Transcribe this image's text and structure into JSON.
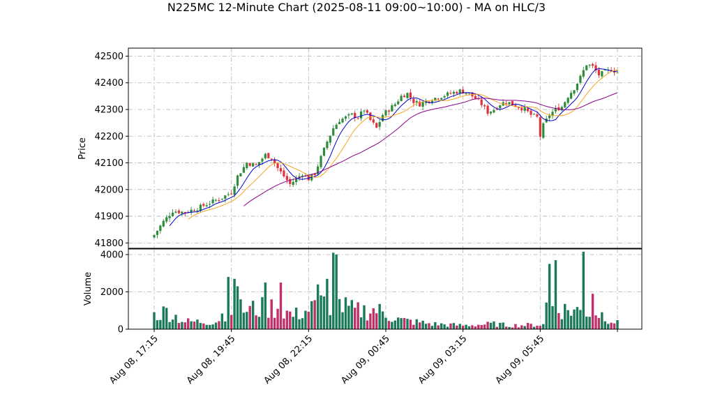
{
  "chart_data": {
    "type": "candlestick",
    "title": "N225MC 12-Minute Chart (2025-08-11 09:00~10:00) - MA on HLC/3",
    "price_panel": {
      "ylabel": "Price",
      "ylim": [
        41780,
        42530
      ],
      "yticks": [
        41800,
        41900,
        42000,
        42100,
        42200,
        42300,
        42400,
        42500
      ],
      "grid": true
    },
    "volume_panel": {
      "ylabel": "Volume",
      "ylim": [
        0,
        4300
      ],
      "yticks": [
        0,
        2000,
        4000
      ],
      "grid": true
    },
    "x_tick_labels": [
      "Aug 08, 17:15",
      "Aug 08, 19:45",
      "Aug 08, 22:15",
      "Aug 09, 00:45",
      "Aug 09, 03:15",
      "Aug 09, 05:45"
    ],
    "x_tick_bar_index": [
      0,
      25,
      50,
      75,
      100,
      125
    ],
    "bar_count": 151,
    "up_color": "#2e8b3a",
    "down_color": "#e0323c",
    "close_anchors": [
      [
        0,
        41830
      ],
      [
        3,
        41880
      ],
      [
        6,
        41920
      ],
      [
        10,
        41915
      ],
      [
        14,
        41930
      ],
      [
        18,
        41950
      ],
      [
        22,
        41970
      ],
      [
        25,
        41990
      ],
      [
        27,
        42050
      ],
      [
        30,
        42100
      ],
      [
        33,
        42090
      ],
      [
        36,
        42130
      ],
      [
        38,
        42120
      ],
      [
        40,
        42080
      ],
      [
        42,
        42050
      ],
      [
        44,
        42020
      ],
      [
        46,
        42040
      ],
      [
        48,
        42060
      ],
      [
        50,
        42040
      ],
      [
        52,
        42060
      ],
      [
        54,
        42120
      ],
      [
        56,
        42180
      ],
      [
        58,
        42230
      ],
      [
        60,
        42260
      ],
      [
        62,
        42270
      ],
      [
        64,
        42280
      ],
      [
        66,
        42270
      ],
      [
        68,
        42300
      ],
      [
        70,
        42260
      ],
      [
        72,
        42230
      ],
      [
        74,
        42280
      ],
      [
        76,
        42300
      ],
      [
        78,
        42320
      ],
      [
        80,
        42350
      ],
      [
        82,
        42360
      ],
      [
        84,
        42330
      ],
      [
        86,
        42320
      ],
      [
        88,
        42330
      ],
      [
        90,
        42340
      ],
      [
        93,
        42350
      ],
      [
        96,
        42360
      ],
      [
        99,
        42370
      ],
      [
        102,
        42360
      ],
      [
        104,
        42340
      ],
      [
        106,
        42320
      ],
      [
        108,
        42290
      ],
      [
        110,
        42300
      ],
      [
        112,
        42320
      ],
      [
        114,
        42330
      ],
      [
        116,
        42320
      ],
      [
        118,
        42310
      ],
      [
        120,
        42300
      ],
      [
        122,
        42280
      ],
      [
        124,
        42270
      ],
      [
        125,
        42200
      ],
      [
        126,
        42240
      ],
      [
        128,
        42280
      ],
      [
        130,
        42300
      ],
      [
        132,
        42310
      ],
      [
        134,
        42350
      ],
      [
        136,
        42380
      ],
      [
        138,
        42420
      ],
      [
        140,
        42470
      ],
      [
        142,
        42460
      ],
      [
        144,
        42430
      ],
      [
        146,
        42440
      ],
      [
        148,
        42450
      ],
      [
        150,
        42440
      ]
    ],
    "volume_spikes": [
      [
        24,
        2800
      ],
      [
        26,
        2700
      ],
      [
        27,
        2300
      ],
      [
        36,
        2500
      ],
      [
        41,
        2500
      ],
      [
        53,
        2400
      ],
      [
        56,
        2700
      ],
      [
        58,
        4100
      ],
      [
        59,
        4000
      ],
      [
        128,
        3500
      ],
      [
        130,
        3700
      ],
      [
        139,
        4150
      ],
      [
        142,
        1900
      ]
    ],
    "volume_levels": [
      [
        0,
        900
      ],
      [
        4,
        1200
      ],
      [
        10,
        500
      ],
      [
        20,
        500
      ],
      [
        24,
        1400
      ],
      [
        30,
        1300
      ],
      [
        40,
        1500
      ],
      [
        45,
        900
      ],
      [
        50,
        1300
      ],
      [
        55,
        1800
      ],
      [
        60,
        1600
      ],
      [
        65,
        1200
      ],
      [
        72,
        1300
      ],
      [
        76,
        900
      ],
      [
        80,
        600
      ],
      [
        90,
        350
      ],
      [
        100,
        250
      ],
      [
        110,
        350
      ],
      [
        115,
        250
      ],
      [
        126,
        300
      ],
      [
        127,
        1700
      ],
      [
        133,
        1300
      ],
      [
        140,
        1200
      ],
      [
        145,
        1000
      ],
      [
        150,
        400
      ]
    ],
    "moving_averages": [
      {
        "color": "#0000cc",
        "window": 6
      },
      {
        "color": "#f5a623",
        "window": 12
      },
      {
        "color": "#8b008b",
        "window": 30
      }
    ]
  }
}
